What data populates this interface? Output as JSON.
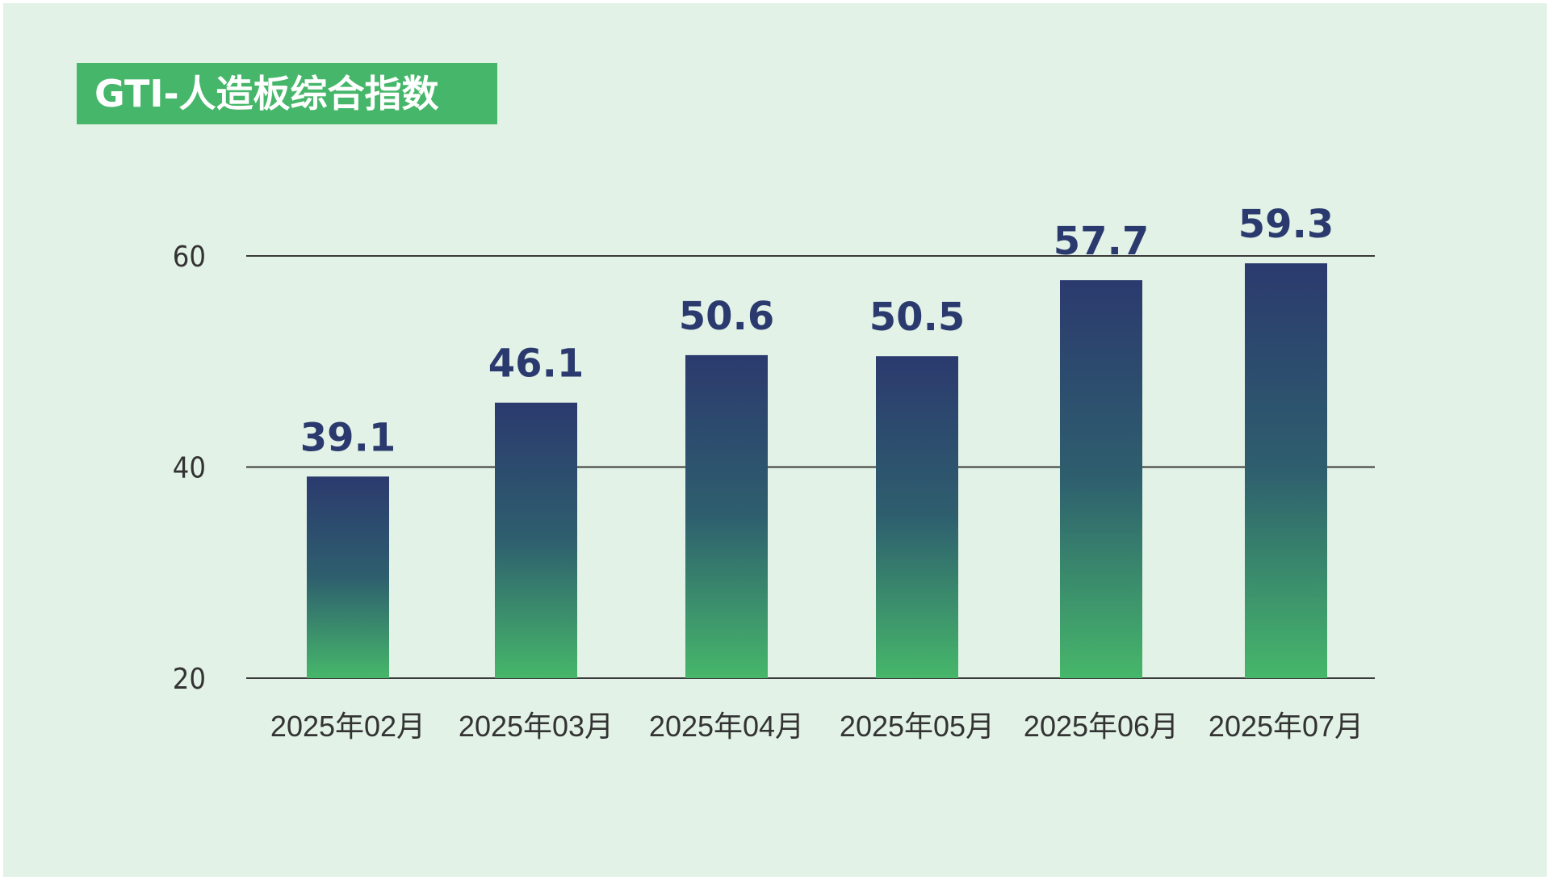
{
  "chart_data": {
    "type": "bar",
    "title": "GTI-人造板综合指数",
    "categories": [
      "2025年02月",
      "2025年03月",
      "2025年04月",
      "2025年05月",
      "2025年06月",
      "2025年07月"
    ],
    "values": [
      39.1,
      46.1,
      50.6,
      50.5,
      57.7,
      59.3
    ],
    "y_ticks": [
      "20",
      "40",
      "60"
    ],
    "ylim": [
      20,
      60
    ],
    "grid": true,
    "colors": {
      "bar_top": "#2b3a6e",
      "bar_mid": "#2e5f6e",
      "bar_bottom": "#46b76a",
      "title_bg": "#46b76a",
      "background": "#e2f2e6",
      "value_label": "#2b3a6e"
    }
  }
}
